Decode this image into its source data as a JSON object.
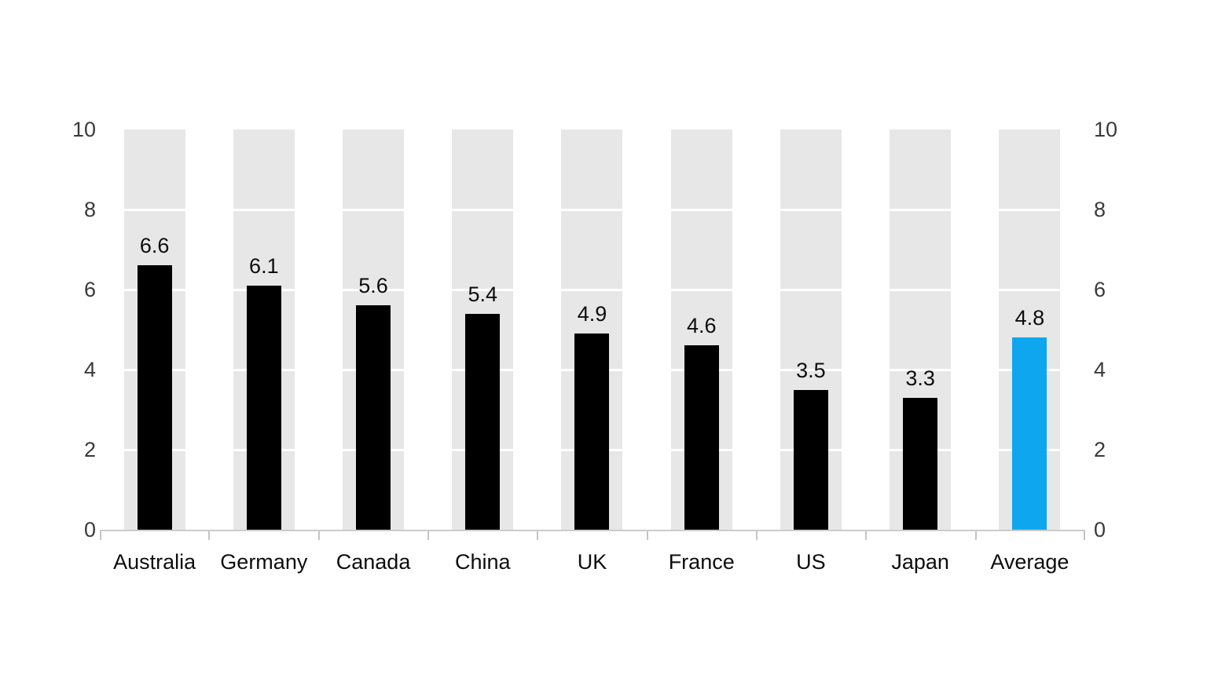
{
  "chart_data": {
    "type": "bar",
    "title": "",
    "xlabel": "",
    "ylabel": "",
    "categories": [
      "Australia",
      "Germany",
      "Canada",
      "China",
      "UK",
      "France",
      "US",
      "Japan",
      "Average"
    ],
    "values": [
      6.6,
      6.1,
      5.6,
      5.4,
      4.9,
      4.6,
      3.5,
      3.3,
      4.8
    ],
    "value_labels": [
      "6.6",
      "6.1",
      "5.6",
      "5.4",
      "4.9",
      "4.6",
      "3.5",
      "3.3",
      "4.8"
    ],
    "highlight_category": "Average",
    "ylim": [
      0,
      10
    ],
    "yticks": [
      10,
      8,
      6,
      4,
      2,
      0
    ],
    "ytick_labels": [
      "10",
      "8",
      "6",
      "4",
      "2",
      "0"
    ],
    "y_axis_sides": "both-left-and-right",
    "legend": "none",
    "grid": "white horizontal gridlines visible only across gray column tracks",
    "colors": {
      "bar_default": "#000000",
      "bar_highlight": "#0ea7ef",
      "track": "#e7e7e7",
      "gridline": "#ffffff",
      "axis_line": "#cccccc",
      "axis_tick": "#c4c4c4",
      "tick_label": "#3a3a3a",
      "category_label": "#0d0d0d",
      "background": "#ffffff"
    }
  }
}
